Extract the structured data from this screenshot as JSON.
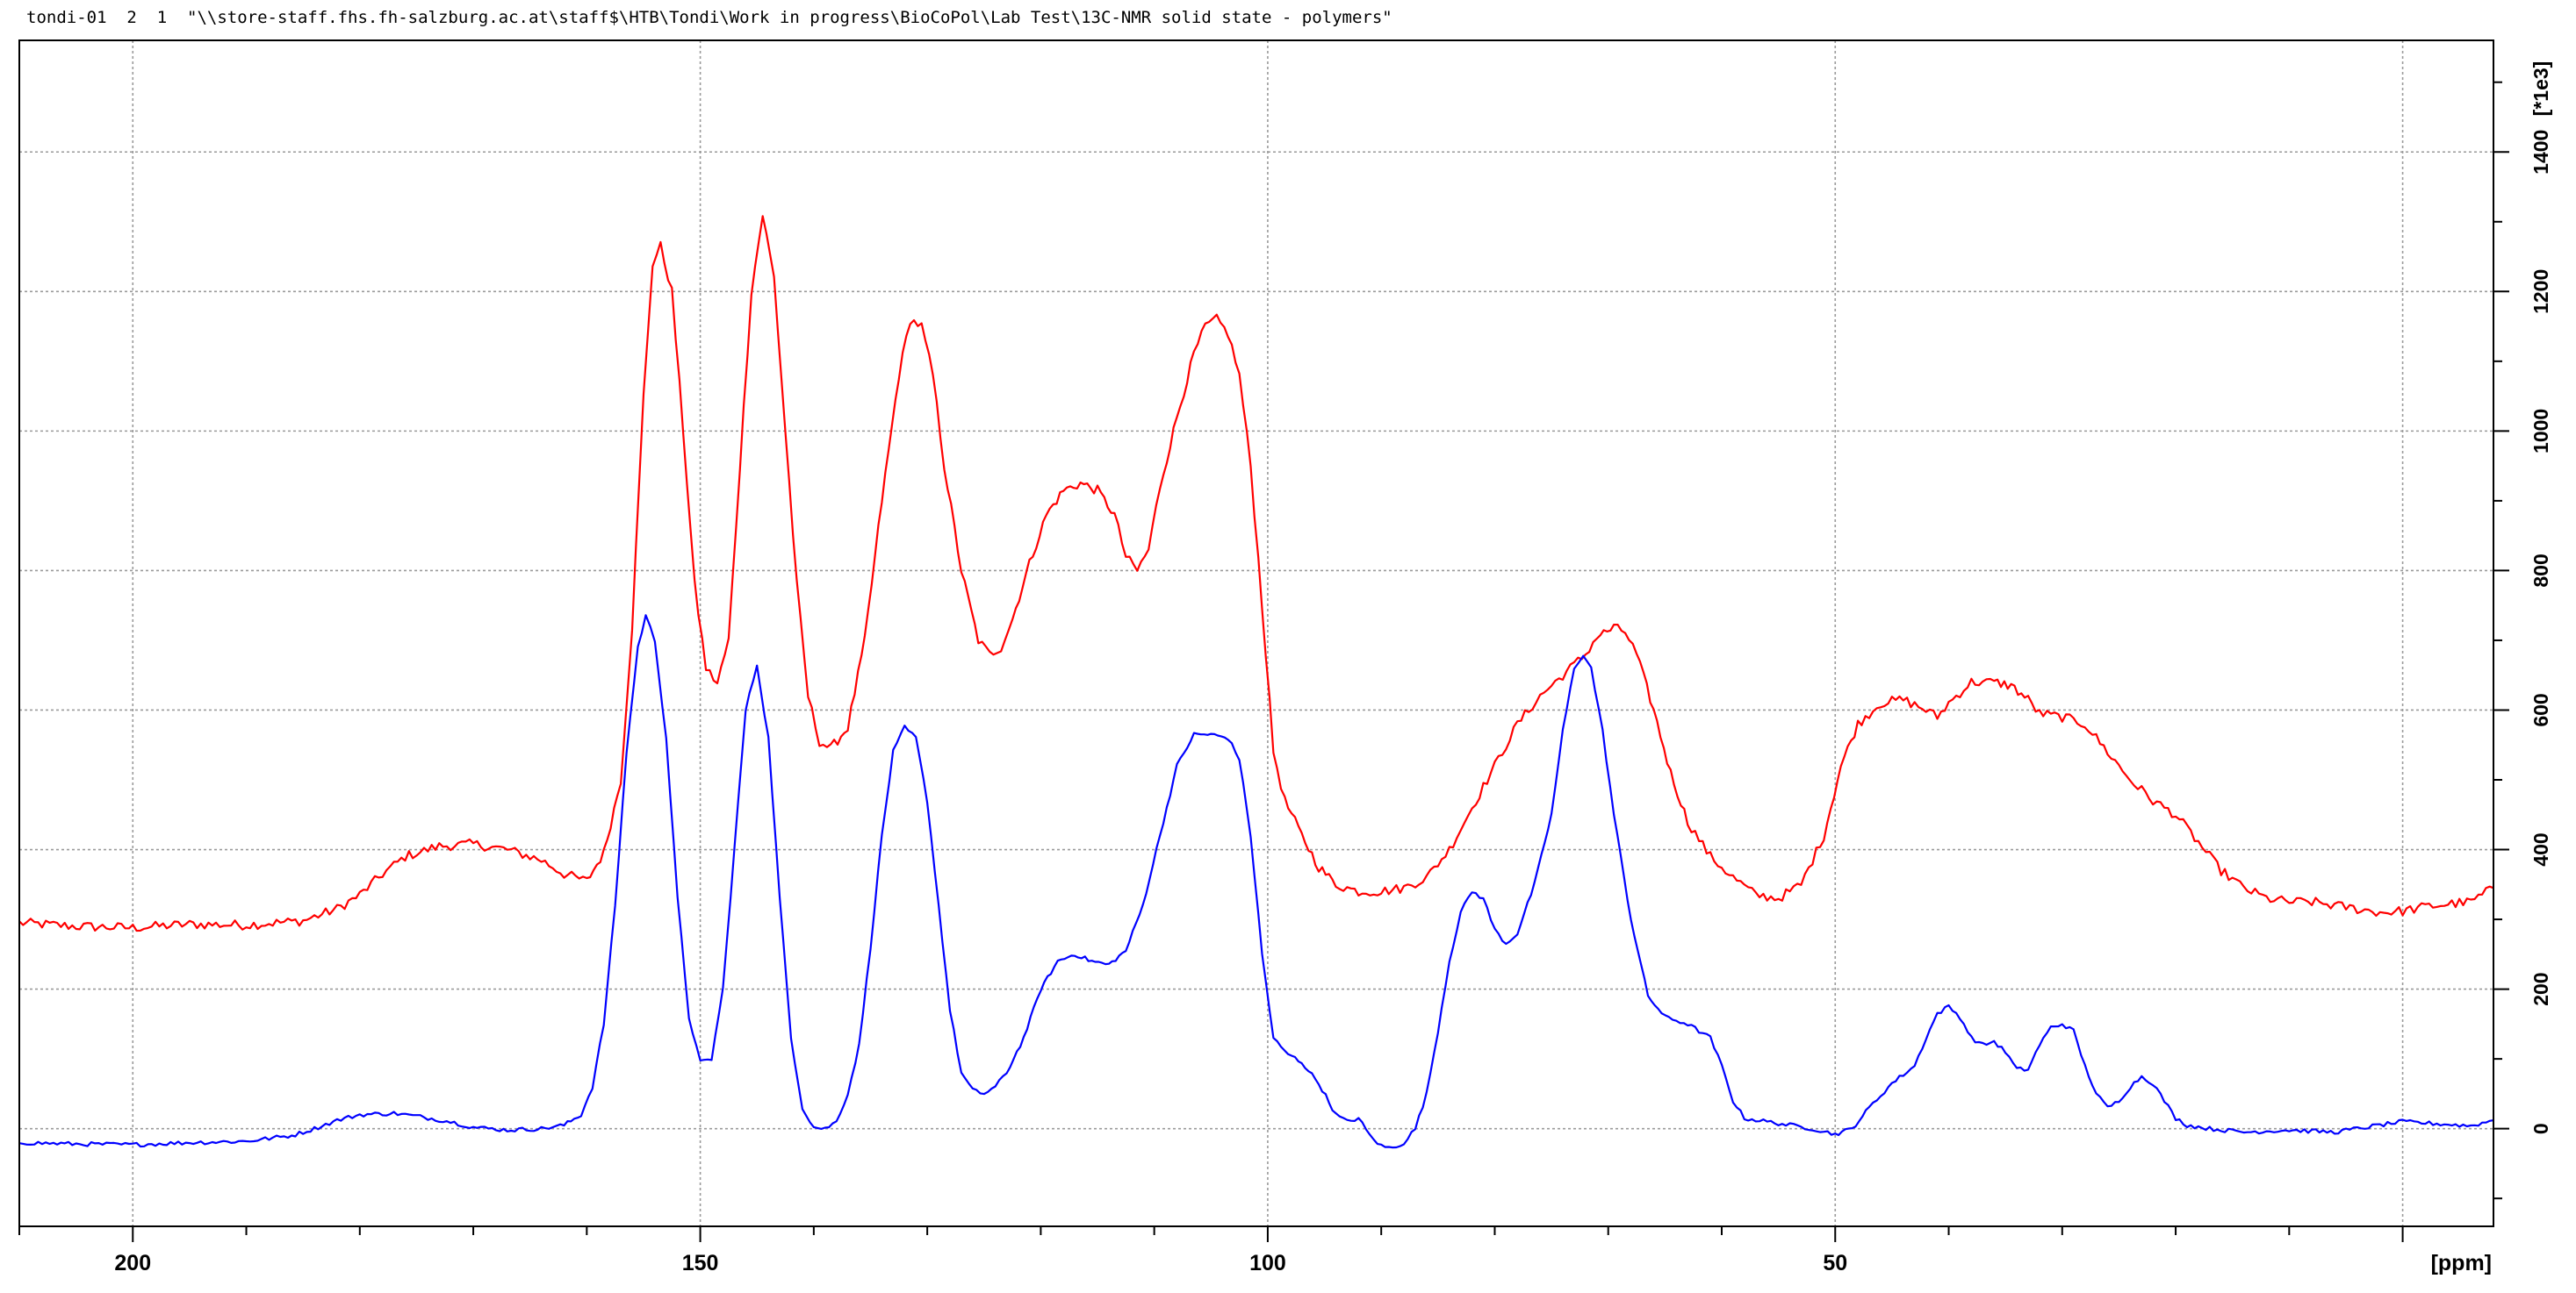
{
  "header_text": "tondi-01  2  1  \"\\\\store-staff.fhs.fh-salzburg.ac.at\\staff$\\HTB\\Tondi\\Work in progress\\BioCoPol\\Lab Test\\13C-NMR solid state - polymers\"",
  "chart_data": {
    "type": "line",
    "xlabel": "[ppm]",
    "ylabel": "[*1e3]",
    "xlim": [
      210,
      -8
    ],
    "ylim": [
      -140,
      1560
    ],
    "x_ticks": [
      200,
      150,
      100,
      50
    ],
    "y_ticks": [
      0,
      200,
      400,
      600,
      800,
      1000,
      1200,
      1400
    ],
    "grid": true,
    "colors": {
      "red": "#ff0000",
      "blue": "#0000ff",
      "grid": "#9a9a9a"
    },
    "series": [
      {
        "color": "#ff0000",
        "noise": 7,
        "points": [
          [
            210,
            295
          ],
          [
            205,
            290
          ],
          [
            200,
            288
          ],
          [
            195,
            293
          ],
          [
            190,
            292
          ],
          [
            185,
            298
          ],
          [
            182,
            315
          ],
          [
            180,
            335
          ],
          [
            178,
            365
          ],
          [
            176,
            390
          ],
          [
            173,
            405
          ],
          [
            170,
            408
          ],
          [
            167,
            400
          ],
          [
            164,
            385
          ],
          [
            162,
            365
          ],
          [
            160,
            355
          ],
          [
            158.5,
            395
          ],
          [
            157,
            500
          ],
          [
            156,
            720
          ],
          [
            155,
            1050
          ],
          [
            154.2,
            1240
          ],
          [
            153.5,
            1265
          ],
          [
            152.5,
            1200
          ],
          [
            151.5,
            1000
          ],
          [
            150.5,
            780
          ],
          [
            149.5,
            660
          ],
          [
            148.5,
            638
          ],
          [
            147.5,
            700
          ],
          [
            146.5,
            950
          ],
          [
            145.5,
            1200
          ],
          [
            144.5,
            1310
          ],
          [
            143.5,
            1220
          ],
          [
            142.5,
            1000
          ],
          [
            141.5,
            780
          ],
          [
            140.5,
            620
          ],
          [
            139.5,
            555
          ],
          [
            138.5,
            545
          ],
          [
            137,
            575
          ],
          [
            135.5,
            700
          ],
          [
            134,
            900
          ],
          [
            132.5,
            1080
          ],
          [
            131.5,
            1160
          ],
          [
            130.5,
            1150
          ],
          [
            129.5,
            1080
          ],
          [
            128.5,
            950
          ],
          [
            127,
            800
          ],
          [
            125.5,
            700
          ],
          [
            124.5,
            680
          ],
          [
            123.5,
            690
          ],
          [
            122.5,
            730
          ],
          [
            121,
            810
          ],
          [
            119.5,
            880
          ],
          [
            118,
            915
          ],
          [
            116.5,
            925
          ],
          [
            115,
            915
          ],
          [
            113.5,
            880
          ],
          [
            112.5,
            820
          ],
          [
            111.5,
            800
          ],
          [
            110.5,
            830
          ],
          [
            109.5,
            920
          ],
          [
            108,
            1020
          ],
          [
            106.5,
            1110
          ],
          [
            105.5,
            1150
          ],
          [
            104.5,
            1160
          ],
          [
            103.5,
            1140
          ],
          [
            102.5,
            1080
          ],
          [
            101.5,
            950
          ],
          [
            100.5,
            750
          ],
          [
            99.5,
            540
          ],
          [
            98.5,
            470
          ],
          [
            97,
            420
          ],
          [
            95.5,
            375
          ],
          [
            94,
            350
          ],
          [
            92,
            340
          ],
          [
            90,
            340
          ],
          [
            88,
            345
          ],
          [
            86,
            360
          ],
          [
            84,
            400
          ],
          [
            82,
            460
          ],
          [
            80,
            520
          ],
          [
            78,
            580
          ],
          [
            76,
            620
          ],
          [
            74,
            650
          ],
          [
            72,
            680
          ],
          [
            71,
            705
          ],
          [
            69.5,
            718
          ],
          [
            68.5,
            712
          ],
          [
            67.5,
            680
          ],
          [
            66,
            600
          ],
          [
            64.5,
            510
          ],
          [
            63,
            440
          ],
          [
            61,
            390
          ],
          [
            59,
            360
          ],
          [
            57,
            335
          ],
          [
            55,
            330
          ],
          [
            53,
            350
          ],
          [
            51,
            420
          ],
          [
            49.5,
            520
          ],
          [
            48,
            580
          ],
          [
            46,
            610
          ],
          [
            44,
            615
          ],
          [
            42,
            600
          ],
          [
            41,
            590
          ],
          [
            40,
            610
          ],
          [
            38,
            640
          ],
          [
            36,
            640
          ],
          [
            34.5,
            635
          ],
          [
            33,
            615
          ],
          [
            32,
            595
          ],
          [
            30,
            590
          ],
          [
            28,
            580
          ],
          [
            26,
            540
          ],
          [
            24,
            500
          ],
          [
            22,
            470
          ],
          [
            20,
            450
          ],
          [
            18,
            410
          ],
          [
            16,
            370
          ],
          [
            14,
            345
          ],
          [
            12,
            330
          ],
          [
            10,
            325
          ],
          [
            8,
            325
          ],
          [
            6,
            320
          ],
          [
            4,
            315
          ],
          [
            2,
            310
          ],
          [
            0,
            312
          ],
          [
            -2,
            318
          ],
          [
            -4,
            322
          ],
          [
            -6,
            325
          ],
          [
            -8,
            345
          ]
        ]
      },
      {
        "color": "#0000ff",
        "noise": 3,
        "points": [
          [
            210,
            -20
          ],
          [
            205,
            -22
          ],
          [
            200,
            -23
          ],
          [
            195,
            -20
          ],
          [
            190,
            -18
          ],
          [
            186,
            -10
          ],
          [
            184,
            0
          ],
          [
            182,
            12
          ],
          [
            180,
            20
          ],
          [
            177,
            22
          ],
          [
            175,
            18
          ],
          [
            172,
            10
          ],
          [
            170,
            2
          ],
          [
            167,
            -2
          ],
          [
            164,
            0
          ],
          [
            162,
            5
          ],
          [
            160.5,
            20
          ],
          [
            159.5,
            60
          ],
          [
            158.5,
            150
          ],
          [
            157.5,
            320
          ],
          [
            156.5,
            540
          ],
          [
            155.5,
            690
          ],
          [
            154.8,
            735
          ],
          [
            154,
            700
          ],
          [
            153,
            560
          ],
          [
            152,
            330
          ],
          [
            151,
            160
          ],
          [
            150,
            95
          ],
          [
            149,
            100
          ],
          [
            148,
            200
          ],
          [
            147,
            400
          ],
          [
            146,
            600
          ],
          [
            145,
            665
          ],
          [
            144,
            560
          ],
          [
            143,
            330
          ],
          [
            142,
            130
          ],
          [
            141,
            30
          ],
          [
            140,
            2
          ],
          [
            139,
            0
          ],
          [
            138,
            10
          ],
          [
            137,
            50
          ],
          [
            136,
            120
          ],
          [
            135,
            260
          ],
          [
            134,
            420
          ],
          [
            133,
            540
          ],
          [
            132,
            575
          ],
          [
            131,
            560
          ],
          [
            130,
            470
          ],
          [
            129,
            320
          ],
          [
            128,
            170
          ],
          [
            127,
            80
          ],
          [
            126,
            55
          ],
          [
            125,
            50
          ],
          [
            124,
            60
          ],
          [
            123,
            80
          ],
          [
            121.5,
            130
          ],
          [
            120,
            200
          ],
          [
            118.5,
            240
          ],
          [
            117,
            250
          ],
          [
            115.5,
            240
          ],
          [
            114,
            235
          ],
          [
            112.5,
            255
          ],
          [
            111,
            320
          ],
          [
            109.5,
            420
          ],
          [
            108,
            520
          ],
          [
            106.5,
            565
          ],
          [
            105,
            565
          ],
          [
            103.5,
            560
          ],
          [
            102.5,
            530
          ],
          [
            101.5,
            420
          ],
          [
            100.5,
            250
          ],
          [
            99.5,
            130
          ],
          [
            98.5,
            110
          ],
          [
            97,
            95
          ],
          [
            95.5,
            65
          ],
          [
            94,
            20
          ],
          [
            93,
            10
          ],
          [
            92,
            15
          ],
          [
            91,
            -10
          ],
          [
            90,
            -25
          ],
          [
            89,
            -28
          ],
          [
            88,
            -20
          ],
          [
            87,
            0
          ],
          [
            86,
            50
          ],
          [
            85,
            140
          ],
          [
            84,
            240
          ],
          [
            83,
            310
          ],
          [
            82,
            340
          ],
          [
            81,
            330
          ],
          [
            80,
            285
          ],
          [
            79,
            265
          ],
          [
            78,
            280
          ],
          [
            76.5,
            350
          ],
          [
            75,
            450
          ],
          [
            74,
            570
          ],
          [
            73,
            660
          ],
          [
            72.2,
            680
          ],
          [
            71.5,
            660
          ],
          [
            70.5,
            570
          ],
          [
            69.5,
            450
          ],
          [
            68,
            300
          ],
          [
            66.5,
            190
          ],
          [
            65,
            160
          ],
          [
            63,
            150
          ],
          [
            61,
            130
          ],
          [
            60,
            90
          ],
          [
            59,
            40
          ],
          [
            58,
            15
          ],
          [
            56,
            10
          ],
          [
            54,
            5
          ],
          [
            52,
            0
          ],
          [
            50,
            -8
          ],
          [
            48.5,
            0
          ],
          [
            47,
            30
          ],
          [
            45,
            65
          ],
          [
            43,
            90
          ],
          [
            42,
            130
          ],
          [
            41,
            165
          ],
          [
            40,
            175
          ],
          [
            39,
            160
          ],
          [
            38,
            130
          ],
          [
            37,
            120
          ],
          [
            36,
            125
          ],
          [
            35,
            110
          ],
          [
            34,
            85
          ],
          [
            33,
            85
          ],
          [
            32,
            120
          ],
          [
            31,
            145
          ],
          [
            30,
            150
          ],
          [
            29,
            140
          ],
          [
            28,
            90
          ],
          [
            27,
            50
          ],
          [
            26,
            30
          ],
          [
            25,
            40
          ],
          [
            24,
            60
          ],
          [
            23,
            75
          ],
          [
            22,
            65
          ],
          [
            21,
            40
          ],
          [
            20,
            15
          ],
          [
            19,
            5
          ],
          [
            17,
            0
          ],
          [
            14,
            -5
          ],
          [
            10,
            -2
          ],
          [
            6,
            -5
          ],
          [
            4,
            0
          ],
          [
            2,
            5
          ],
          [
            0,
            10
          ],
          [
            -2,
            8
          ],
          [
            -4,
            6
          ],
          [
            -6,
            4
          ],
          [
            -8,
            12
          ]
        ]
      }
    ]
  }
}
